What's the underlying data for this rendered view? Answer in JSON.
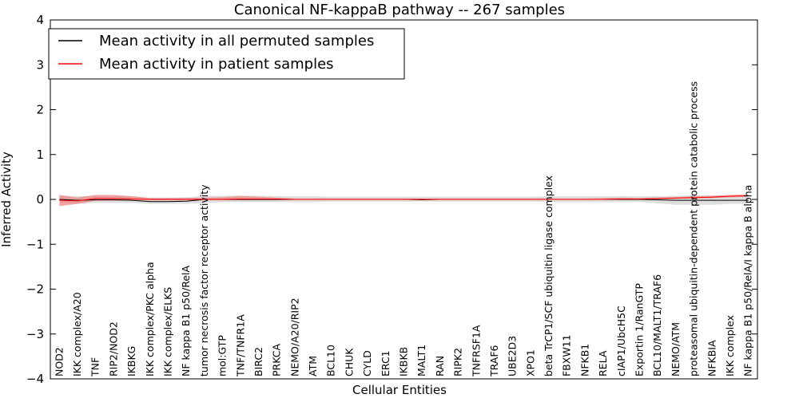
{
  "chart_data": {
    "type": "line",
    "title": "Canonical NF-kappaB pathway -- 267 samples",
    "xlabel": "Cellular Entities",
    "ylabel": "Inferred Activity",
    "ylim": [
      -4,
      4
    ],
    "yticks": [
      -4,
      -3,
      -2,
      -1,
      0,
      1,
      2,
      3,
      4
    ],
    "ytick_labels": [
      "−4",
      "−3",
      "−2",
      "−1",
      "0",
      "1",
      "2",
      "3",
      "4"
    ],
    "grid": false,
    "legend_position": "top-left",
    "categories": [
      "NOD2",
      "IKK complex/A20",
      "TNF",
      "RIP2/NOD2",
      "IKBKG",
      "IKK complex/PKC alpha",
      "IKK complex/ELKS",
      "NF kappa B1 p50/RelA",
      "tumor necrosis factor receptor activity",
      "mol:GTP",
      "TNF/TNFR1A",
      "BIRC2",
      "PRKCA",
      "NEMO/A20/RIP2",
      "ATM",
      "BCL10",
      "CHUK",
      "CYLD",
      "ERC1",
      "IKBKB",
      "MALT1",
      "RAN",
      "RIPK2",
      "TNFRSF1A",
      "TRAF6",
      "UBE2D3",
      "XPO1",
      "beta TrCP1/SCF ubiquitin ligase complex",
      "FBXW11",
      "NFKB1",
      "RELA",
      "cIAP1/UbcH5C",
      "Exportin 1/RanGTP",
      "BCL10/MALT1/TRAF6",
      "NEMO/ATM",
      "proteasomal ubiquitin-dependent protein catabolic process",
      "NFKBIA",
      "IKK complex",
      "NF kappa B1 p50/RelA/I kappa B alpha"
    ],
    "series": [
      {
        "name": "Mean activity in all permuted samples",
        "color": "#000000",
        "values": [
          0,
          -0.02,
          -0.01,
          -0.01,
          -0.02,
          -0.05,
          -0.05,
          -0.04,
          0,
          0,
          0,
          0,
          0,
          0,
          0,
          0,
          0,
          0,
          0,
          0,
          -0.01,
          0,
          0,
          0,
          0,
          0,
          0,
          0,
          0,
          0,
          0,
          0,
          0,
          -0.01,
          -0.02,
          -0.02,
          -0.02,
          -0.02,
          -0.02
        ],
        "band_lower": [
          -0.08,
          -0.09,
          -0.08,
          -0.08,
          -0.08,
          -0.1,
          -0.1,
          -0.1,
          -0.08,
          -0.06,
          -0.06,
          -0.06,
          -0.06,
          -0.06,
          -0.06,
          -0.05,
          -0.05,
          -0.05,
          -0.05,
          -0.05,
          -0.05,
          -0.05,
          -0.05,
          -0.05,
          -0.05,
          -0.05,
          -0.05,
          -0.06,
          -0.06,
          -0.06,
          -0.06,
          -0.06,
          -0.06,
          -0.09,
          -0.12,
          -0.12,
          -0.12,
          -0.1,
          -0.1
        ],
        "band_upper": [
          0.08,
          0.07,
          0.08,
          0.08,
          0.07,
          0.04,
          0.04,
          0.05,
          0.08,
          0.08,
          0.08,
          0.08,
          0.07,
          0.07,
          0.07,
          0.06,
          0.06,
          0.06,
          0.06,
          0.06,
          0.06,
          0.06,
          0.06,
          0.06,
          0.06,
          0.06,
          0.06,
          0.07,
          0.07,
          0.07,
          0.07,
          0.07,
          0.07,
          0.07,
          0.08,
          0.09,
          0.09,
          0.08,
          0.08
        ]
      },
      {
        "name": "Mean activity in patient samples",
        "color": "#ff0000",
        "values": [
          -0.02,
          -0.03,
          0.02,
          0.02,
          0.01,
          0,
          0,
          0,
          0,
          0,
          0.01,
          0.01,
          0.01,
          0,
          0,
          0,
          0,
          0,
          0,
          0,
          0,
          0,
          0,
          0,
          0,
          0,
          0,
          0,
          0,
          0,
          0,
          0.01,
          0.01,
          0.02,
          0.03,
          0.04,
          0.05,
          0.07,
          0.08
        ],
        "band_lower": [
          -0.15,
          -0.1,
          -0.03,
          -0.03,
          -0.02,
          -0.02,
          -0.02,
          -0.02,
          -0.02,
          -0.02,
          -0.02,
          -0.02,
          -0.02,
          -0.01,
          -0.01,
          -0.01,
          -0.01,
          -0.01,
          -0.01,
          -0.01,
          -0.01,
          -0.01,
          -0.01,
          -0.01,
          -0.01,
          -0.01,
          -0.01,
          -0.01,
          -0.01,
          -0.01,
          -0.01,
          -0.01,
          -0.01,
          0,
          0.01,
          0.02,
          0.03,
          0.05,
          0.06
        ],
        "band_upper": [
          0.1,
          0.04,
          0.1,
          0.1,
          0.07,
          0.03,
          0.03,
          0.03,
          0.04,
          0.05,
          0.08,
          0.06,
          0.04,
          0.02,
          0.02,
          0.02,
          0.02,
          0.02,
          0.02,
          0.02,
          0.02,
          0.02,
          0.02,
          0.02,
          0.02,
          0.02,
          0.02,
          0.02,
          0.02,
          0.02,
          0.03,
          0.04,
          0.03,
          0.04,
          0.05,
          0.07,
          0.08,
          0.1,
          0.11
        ]
      }
    ]
  }
}
